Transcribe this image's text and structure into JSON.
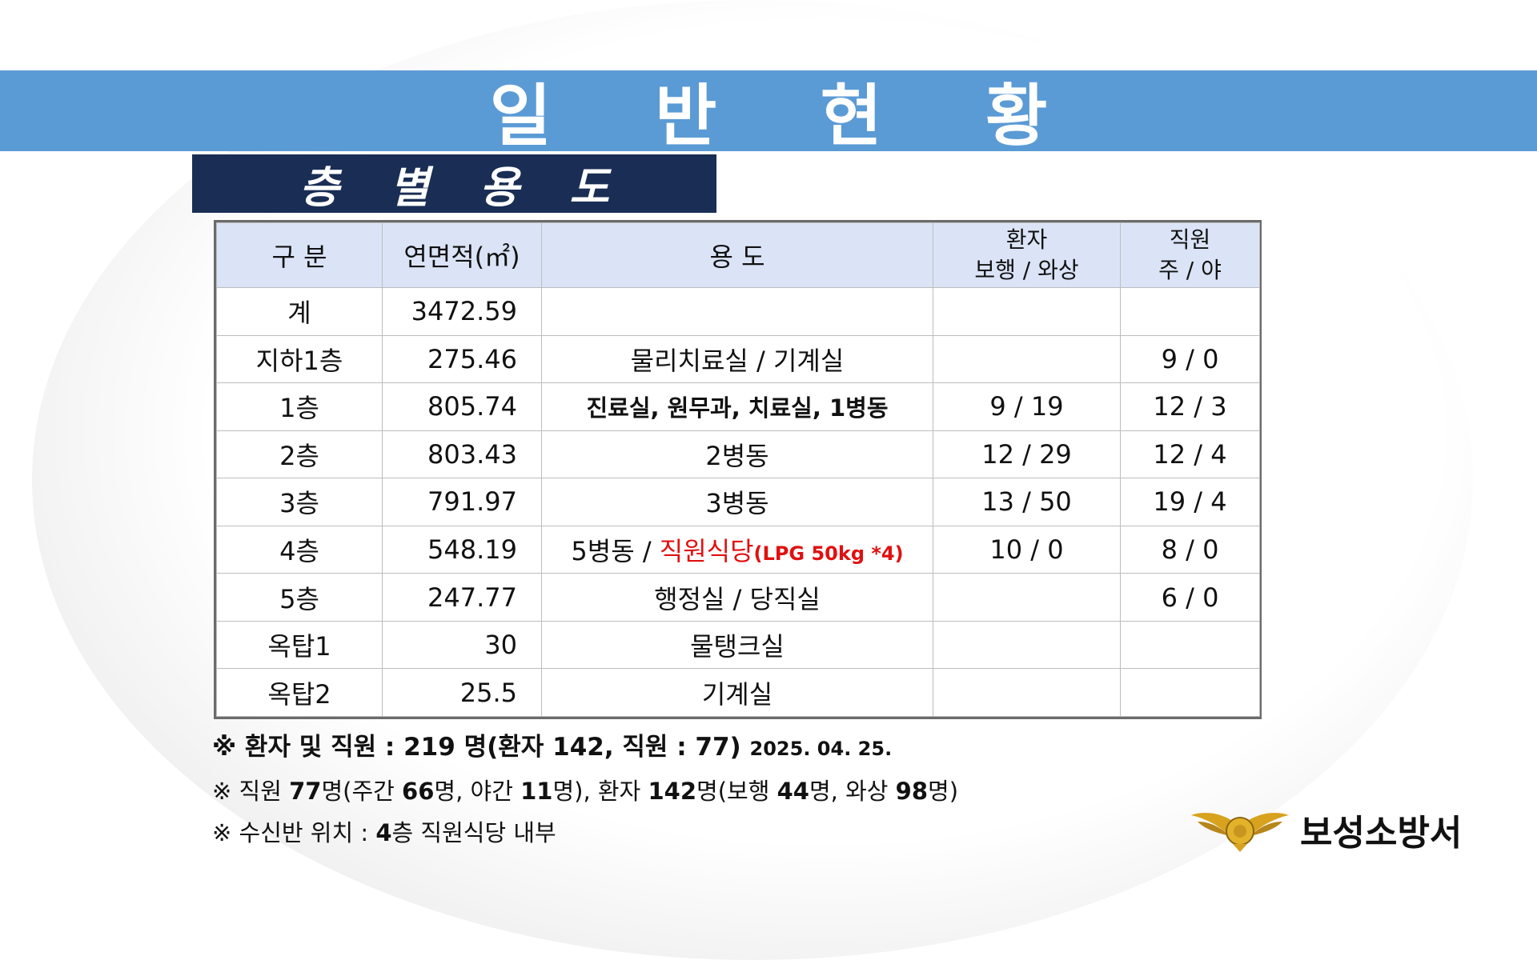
{
  "title": "일 반 현 황",
  "section": "층 별 용 도",
  "table": {
    "headers": {
      "col1": "구 분",
      "col2": "연면적(㎡)",
      "col3": "용 도",
      "col4_line1": "환자",
      "col4_line2": "보행 / 와상",
      "col5_line1": "직원",
      "col5_line2": "주 / 야"
    },
    "rows": [
      {
        "floor": "계",
        "area": "3472.59",
        "usage": "",
        "patients": "",
        "staff": ""
      },
      {
        "floor": "지하1층",
        "area": "275.46",
        "usage": "물리치료실 / 기계실",
        "patients": "",
        "staff": "9 / 0"
      },
      {
        "floor": "1층",
        "area": "805.74",
        "usage": "진료실, 원무과, 치료실, 1병동",
        "patients": "9 / 19",
        "staff": "12 / 3"
      },
      {
        "floor": "2층",
        "area": "803.43",
        "usage": "2병동",
        "patients": "12 / 29",
        "staff": "12 / 4"
      },
      {
        "floor": "3층",
        "area": "791.97",
        "usage": "3병동",
        "patients": "13 / 50",
        "staff": "19 / 4"
      },
      {
        "floor": "4층",
        "area": "548.19",
        "usage_main": "5병동 / ",
        "usage_highlight": "직원식당",
        "usage_note": "(LPG 50kg *4)",
        "patients": "10 / 0",
        "staff": "8 / 0"
      },
      {
        "floor": "5층",
        "area": "247.77",
        "usage": "행정실 / 당직실",
        "patients": "",
        "staff": "6 / 0"
      },
      {
        "floor": "옥탑1",
        "area": "30",
        "usage": "물탱크실",
        "patients": "",
        "staff": ""
      },
      {
        "floor": "옥탑2",
        "area": "25.5",
        "usage": "기계실",
        "patients": "",
        "staff": ""
      }
    ]
  },
  "notes": {
    "note1_main": "※ 환자 및 직원 : 219 명(환자  142, 직원 :  77)",
    "note1_date": "2025. 04. 25.",
    "note2": {
      "p1": "※ 직원 ",
      "n1": "77",
      "p2": "명(주간 ",
      "n2": "66",
      "p3": "명, 야간 ",
      "n3": "11",
      "p4": "명), 환자 ",
      "n4": "142",
      "p5": "명(보행 ",
      "n5": "44",
      "p6": "명, 와상 ",
      "n6": "98",
      "p7": "명)"
    },
    "note3": {
      "p1": "※ 수신반 위치 : ",
      "n1": "4",
      "p2": "층 직원식당 내부"
    }
  },
  "logo": {
    "text": "보성소방서",
    "icon": "fire-emblem-icon"
  },
  "colors": {
    "title_bar": "#5b9bd5",
    "section_box": "#1a2e55",
    "header_bg": "#dbe4f6",
    "highlight": "#e01010"
  }
}
